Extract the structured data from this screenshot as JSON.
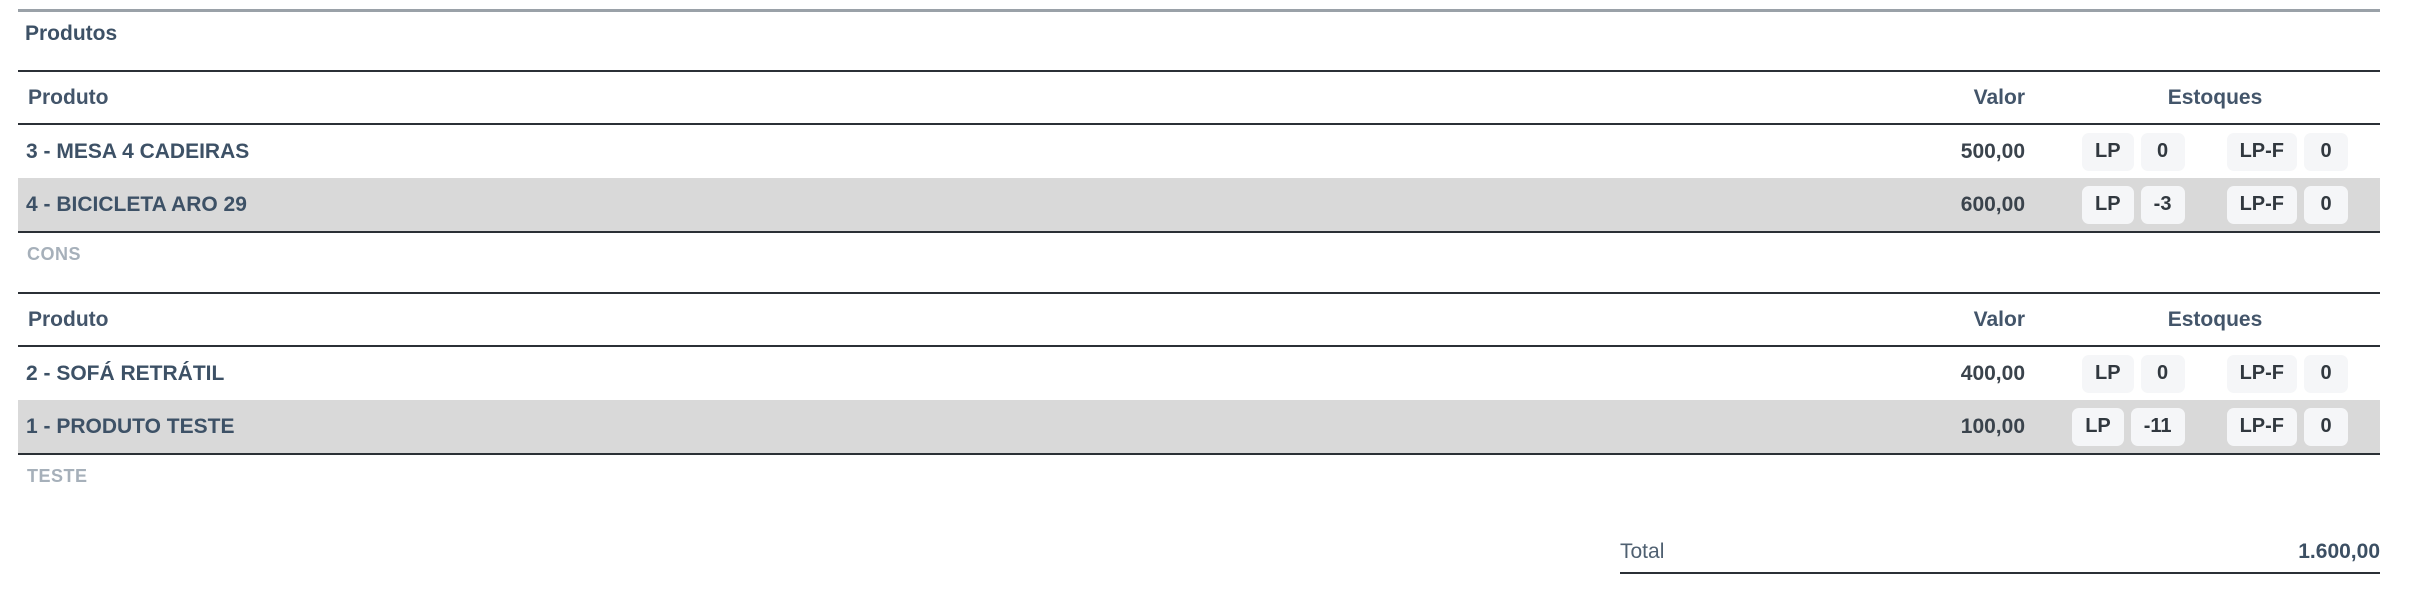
{
  "header": {
    "title": "Produtos"
  },
  "columns": {
    "product": "Produto",
    "value": "Valor",
    "stocks": "Estoques"
  },
  "groups": [
    {
      "caption": "CONS",
      "rows": [
        {
          "name": "3 - MESA 4 CADEIRAS",
          "value": "500,00",
          "stocks": [
            {
              "label": "LP",
              "qty": "0"
            },
            {
              "label": "LP-F",
              "qty": "0"
            }
          ]
        },
        {
          "name": "4 - BICICLETA ARO 29",
          "value": "600,00",
          "stocks": [
            {
              "label": "LP",
              "qty": "-3"
            },
            {
              "label": "LP-F",
              "qty": "0"
            }
          ]
        }
      ]
    },
    {
      "caption": "TESTE",
      "rows": [
        {
          "name": "2 - SOFÁ RETRÁTIL",
          "value": "400,00",
          "stocks": [
            {
              "label": "LP",
              "qty": "0"
            },
            {
              "label": "LP-F",
              "qty": "0"
            }
          ]
        },
        {
          "name": "1 - PRODUTO TESTE",
          "value": "100,00",
          "stocks": [
            {
              "label": "LP",
              "qty": "-11"
            },
            {
              "label": "LP-F",
              "qty": "0"
            }
          ]
        }
      ]
    }
  ],
  "total": {
    "label": "Total",
    "value": "1.600,00"
  },
  "colors": {
    "heading_text": "#3d5166",
    "caption_text": "#a6b0ba",
    "striped_row_bg": "#d9d9d9",
    "badge_bg": "#f5f6f8",
    "table_border": "#2b3036",
    "top_divider": "#9aa1a8"
  }
}
